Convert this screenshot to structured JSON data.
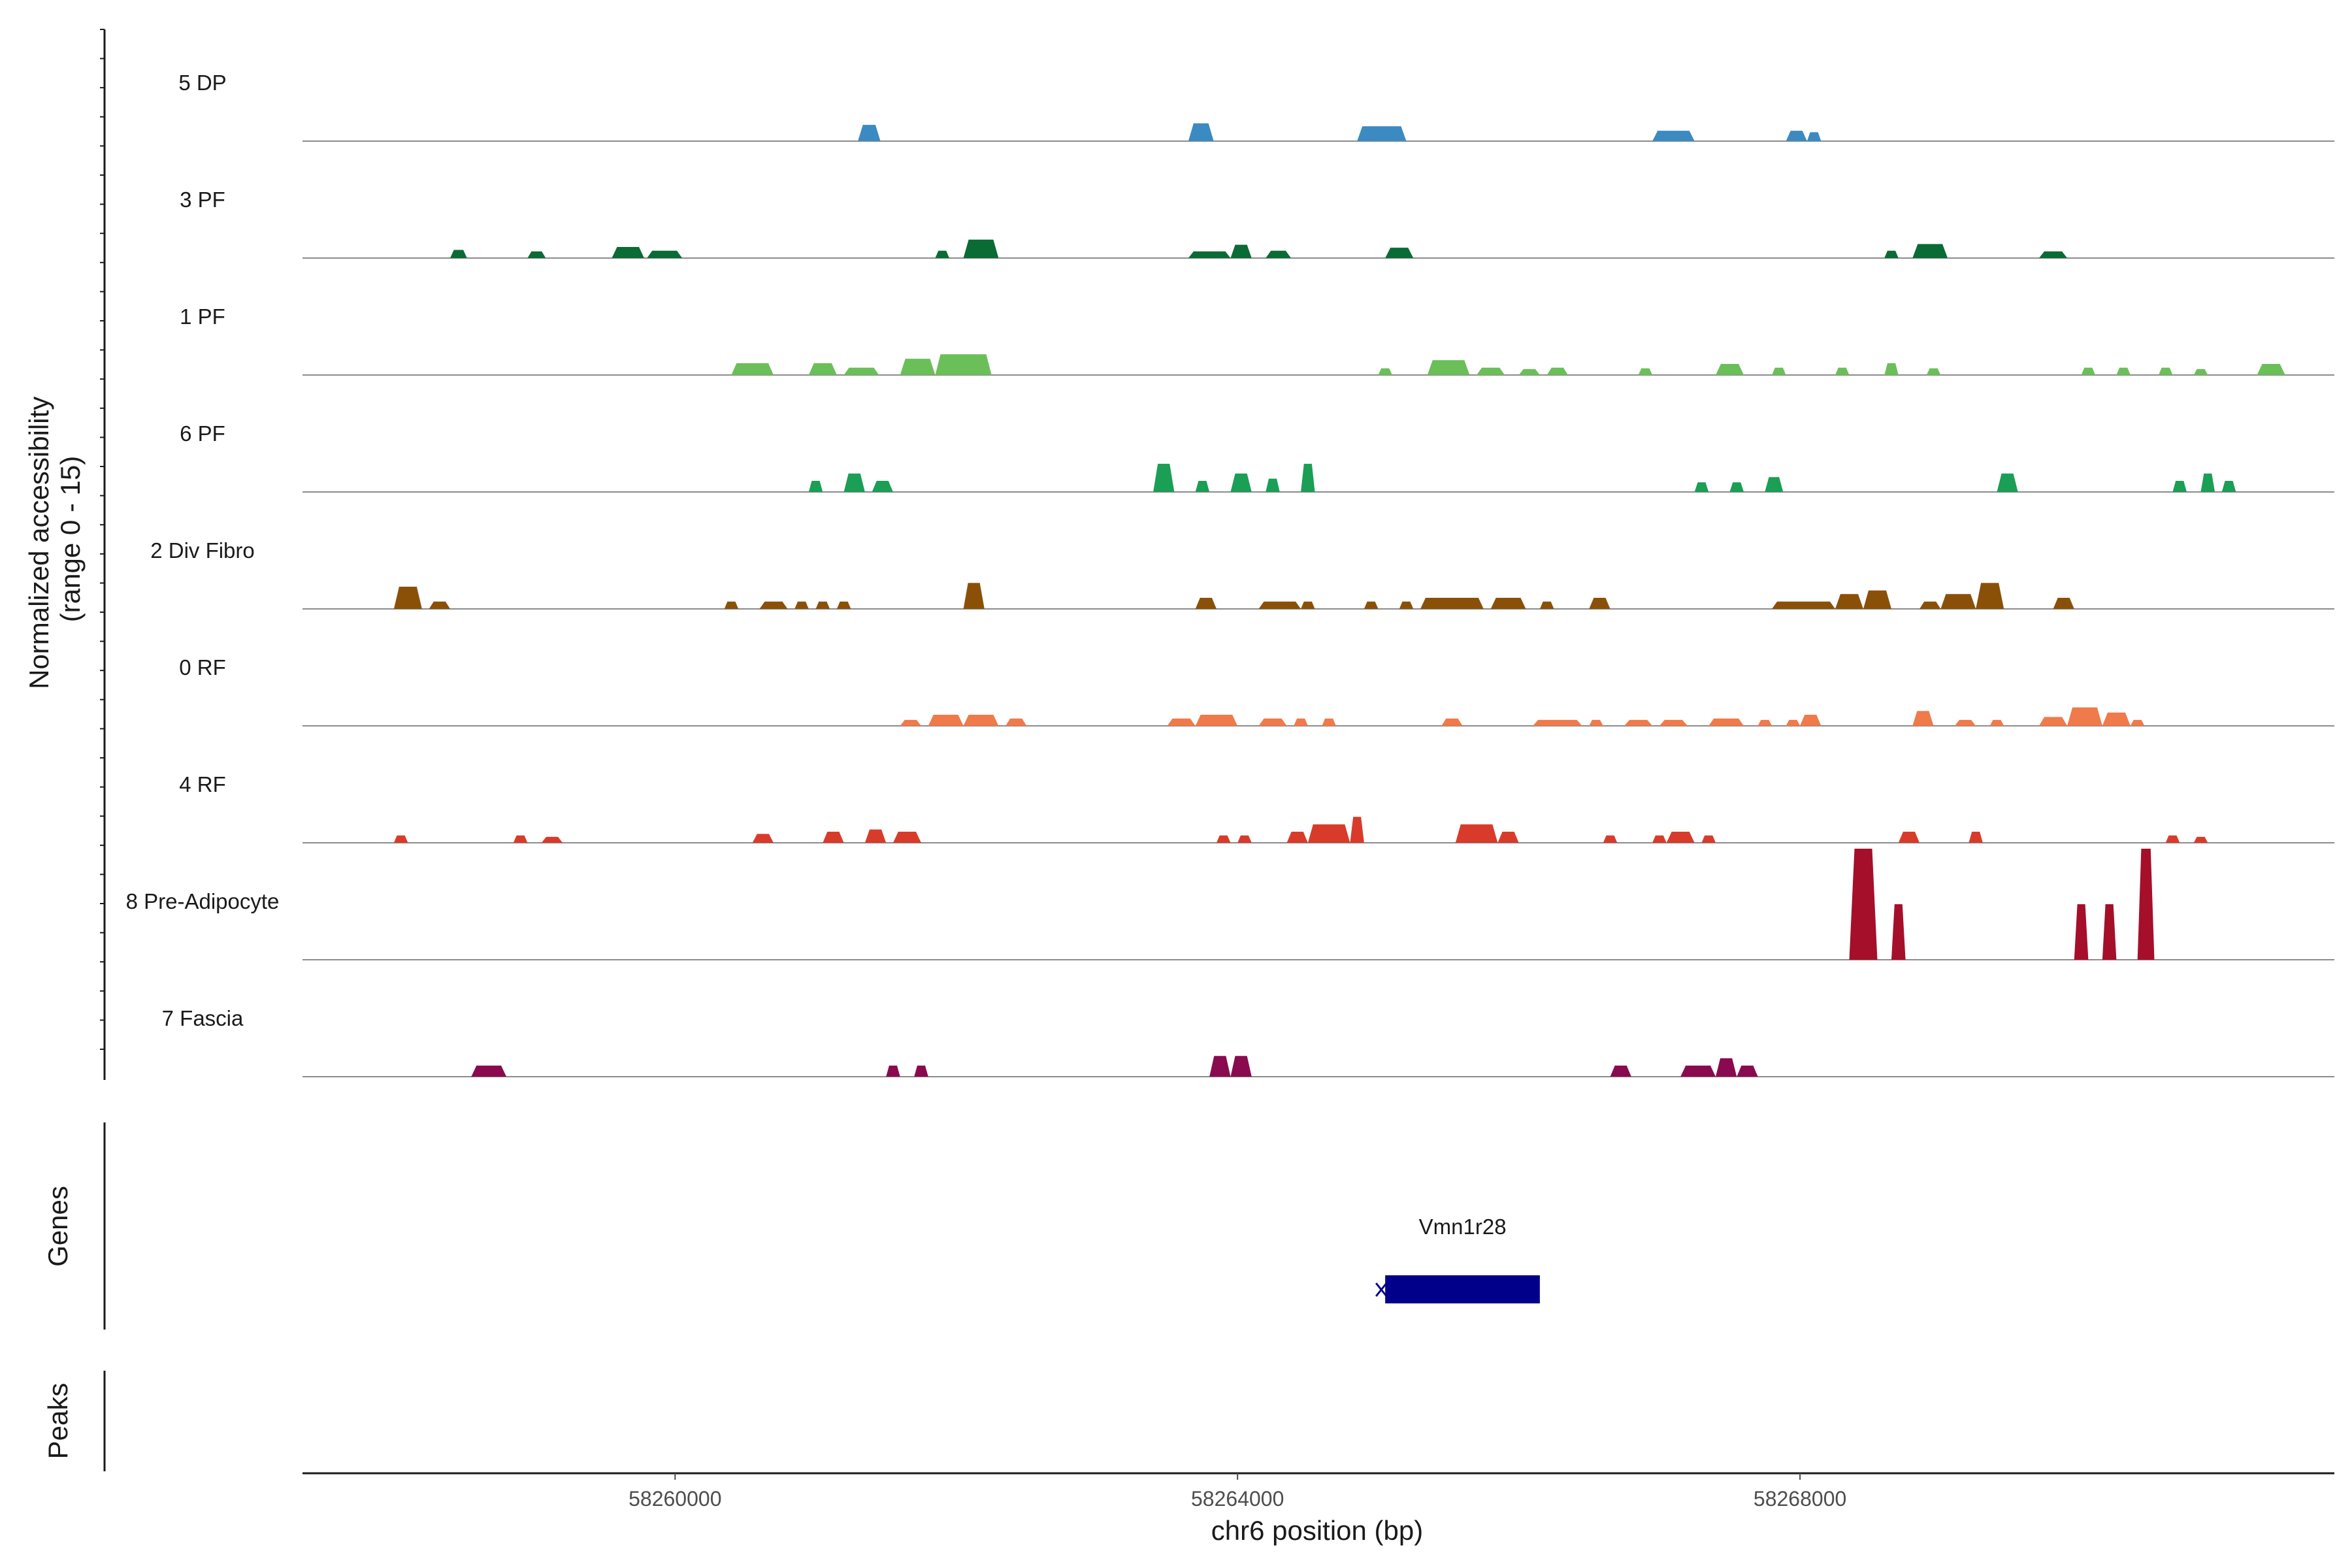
{
  "chart_data": {
    "type": "coverage-track",
    "chromosome": "chr6",
    "xlim": [
      58257350,
      58271800
    ],
    "xlabel": "chr6 position (bp)",
    "ylabel": "Normalized accessibility\n(range 0 - 15)",
    "ylim": [
      0,
      15
    ],
    "xticks": [
      {
        "value": 58260000,
        "label": "58260000"
      },
      {
        "value": 58264000,
        "label": "58264000"
      },
      {
        "value": 58268000,
        "label": "58268000"
      }
    ],
    "tracks": [
      {
        "name": "5 DP",
        "color": "#3B8BC2",
        "peaks": [
          [
            58261300,
            58261460,
            2.2
          ],
          [
            58263650,
            58263830,
            2.4
          ],
          [
            58264850,
            58265200,
            2.0
          ],
          [
            58266950,
            58267250,
            1.4
          ],
          [
            58267900,
            58268050,
            1.4
          ],
          [
            58268050,
            58268150,
            1.2
          ]
        ]
      },
      {
        "name": "3 PF",
        "color": "#0B6B35",
        "peaks": [
          [
            58258400,
            58258520,
            1.1
          ],
          [
            58258950,
            58259080,
            0.9
          ],
          [
            58259550,
            58259780,
            1.5
          ],
          [
            58259800,
            58260050,
            1.0
          ],
          [
            58261850,
            58261950,
            1.0
          ],
          [
            58262050,
            58262300,
            2.5
          ],
          [
            58263650,
            58263950,
            0.9
          ],
          [
            58263950,
            58264100,
            1.8
          ],
          [
            58264200,
            58264380,
            1.0
          ],
          [
            58265050,
            58265250,
            1.4
          ],
          [
            58268600,
            58268700,
            1.0
          ],
          [
            58268800,
            58269050,
            1.9
          ],
          [
            58269700,
            58269900,
            0.9
          ]
        ]
      },
      {
        "name": "1 PF",
        "color": "#6BBF59",
        "peaks": [
          [
            58260400,
            58260700,
            1.6
          ],
          [
            58260950,
            58261150,
            1.6
          ],
          [
            58261200,
            58261450,
            1.0
          ],
          [
            58261600,
            58261850,
            2.2
          ],
          [
            58261850,
            58262250,
            2.8
          ],
          [
            58265000,
            58265100,
            0.9
          ],
          [
            58265350,
            58265650,
            2.0
          ],
          [
            58265700,
            58265900,
            1.0
          ],
          [
            58266000,
            58266150,
            0.8
          ],
          [
            58266200,
            58266350,
            1.0
          ],
          [
            58266850,
            58266950,
            0.9
          ],
          [
            58267400,
            58267600,
            1.5
          ],
          [
            58267800,
            58267900,
            1.0
          ],
          [
            58268250,
            58268350,
            1.0
          ],
          [
            58268600,
            58268700,
            1.6
          ],
          [
            58268900,
            58269000,
            0.9
          ],
          [
            58270000,
            58270100,
            1.0
          ],
          [
            58270250,
            58270350,
            1.0
          ],
          [
            58270550,
            58270650,
            1.0
          ],
          [
            58270800,
            58270900,
            0.8
          ],
          [
            58271250,
            58271450,
            1.5
          ]
        ]
      },
      {
        "name": "6 PF",
        "color": "#1B9E55",
        "peaks": [
          [
            58260950,
            58261050,
            1.5
          ],
          [
            58261200,
            58261350,
            2.5
          ],
          [
            58261400,
            58261550,
            1.5
          ],
          [
            58263400,
            58263550,
            3.8
          ],
          [
            58263700,
            58263800,
            1.5
          ],
          [
            58263950,
            58264100,
            2.5
          ],
          [
            58264200,
            58264300,
            1.8
          ],
          [
            58264450,
            58264550,
            3.8
          ],
          [
            58267250,
            58267350,
            1.3
          ],
          [
            58267500,
            58267600,
            1.3
          ],
          [
            58267750,
            58267880,
            2.0
          ],
          [
            58269400,
            58269550,
            2.5
          ],
          [
            58270650,
            58270750,
            1.5
          ],
          [
            58270850,
            58270950,
            2.5
          ],
          [
            58271000,
            58271100,
            1.5
          ]
        ]
      },
      {
        "name": "2 Div Fibro",
        "color": "#8B5008",
        "peaks": [
          [
            58258000,
            58258200,
            3.0
          ],
          [
            58258250,
            58258400,
            1.0
          ],
          [
            58260350,
            58260450,
            1.0
          ],
          [
            58260600,
            58260800,
            1.0
          ],
          [
            58260850,
            58260950,
            1.0
          ],
          [
            58261000,
            58261100,
            1.0
          ],
          [
            58261150,
            58261250,
            1.0
          ],
          [
            58262050,
            58262200,
            3.5
          ],
          [
            58263700,
            58263850,
            1.5
          ],
          [
            58264150,
            58264450,
            1.0
          ],
          [
            58264450,
            58264550,
            1.0
          ],
          [
            58264900,
            58265000,
            1.0
          ],
          [
            58265150,
            58265250,
            1.0
          ],
          [
            58265300,
            58265750,
            1.5
          ],
          [
            58265800,
            58266050,
            1.5
          ],
          [
            58266150,
            58266250,
            1.0
          ],
          [
            58266500,
            58266650,
            1.5
          ],
          [
            58267800,
            58268250,
            1.0
          ],
          [
            58268250,
            58268450,
            2.0
          ],
          [
            58268450,
            58268650,
            2.5
          ],
          [
            58268850,
            58269000,
            1.0
          ],
          [
            58269000,
            58269250,
            2.0
          ],
          [
            58269250,
            58269450,
            3.5
          ],
          [
            58269800,
            58269950,
            1.5
          ]
        ]
      },
      {
        "name": "0 RF",
        "color": "#F07A4A",
        "peaks": [
          [
            58261600,
            58261750,
            0.8
          ],
          [
            58261800,
            58262050,
            1.5
          ],
          [
            58262050,
            58262300,
            1.5
          ],
          [
            58262350,
            58262500,
            1.0
          ],
          [
            58263500,
            58263700,
            1.0
          ],
          [
            58263700,
            58264000,
            1.5
          ],
          [
            58264150,
            58264350,
            1.0
          ],
          [
            58264400,
            58264500,
            1.0
          ],
          [
            58264600,
            58264700,
            1.0
          ],
          [
            58265450,
            58265600,
            1.0
          ],
          [
            58266100,
            58266450,
            0.8
          ],
          [
            58266500,
            58266600,
            0.8
          ],
          [
            58266750,
            58266950,
            0.8
          ],
          [
            58267000,
            58267200,
            0.8
          ],
          [
            58267350,
            58267600,
            1.0
          ],
          [
            58267700,
            58267800,
            0.8
          ],
          [
            58267900,
            58268000,
            0.8
          ],
          [
            58268000,
            58268150,
            1.5
          ],
          [
            58268800,
            58268950,
            2.0
          ],
          [
            58269100,
            58269250,
            0.8
          ],
          [
            58269350,
            58269450,
            0.8
          ],
          [
            58269700,
            58269900,
            1.2
          ],
          [
            58269900,
            58270150,
            2.5
          ],
          [
            58270150,
            58270350,
            1.8
          ],
          [
            58270350,
            58270450,
            0.8
          ]
        ]
      },
      {
        "name": "4 RF",
        "color": "#D93B2B",
        "peaks": [
          [
            58258000,
            58258100,
            1.0
          ],
          [
            58258850,
            58258950,
            1.0
          ],
          [
            58259050,
            58259200,
            0.8
          ],
          [
            58260550,
            58260700,
            1.2
          ],
          [
            58261050,
            58261200,
            1.5
          ],
          [
            58261350,
            58261500,
            1.8
          ],
          [
            58261550,
            58261750,
            1.5
          ],
          [
            58263850,
            58263950,
            1.0
          ],
          [
            58264000,
            58264100,
            1.0
          ],
          [
            58264350,
            58264500,
            1.5
          ],
          [
            58264500,
            58264800,
            2.5
          ],
          [
            58264800,
            58264900,
            3.5
          ],
          [
            58265550,
            58265850,
            2.5
          ],
          [
            58265850,
            58266000,
            1.5
          ],
          [
            58266600,
            58266700,
            1.0
          ],
          [
            58266950,
            58267050,
            1.0
          ],
          [
            58267050,
            58267250,
            1.5
          ],
          [
            58267300,
            58267400,
            1.0
          ],
          [
            58268700,
            58268850,
            1.5
          ],
          [
            58269200,
            58269300,
            1.5
          ],
          [
            58270600,
            58270700,
            1.0
          ],
          [
            58270800,
            58270900,
            0.8
          ]
        ]
      },
      {
        "name": "8 Pre-Adipocyte",
        "color": "#A50F2A",
        "peaks": [
          [
            58268350,
            58268550,
            15.0
          ],
          [
            58268650,
            58268750,
            7.5
          ],
          [
            58269950,
            58270050,
            7.5
          ],
          [
            58270150,
            58270250,
            7.5
          ],
          [
            58270400,
            58270520,
            15.0
          ]
        ]
      },
      {
        "name": "7 Fascia",
        "color": "#8A0A4F",
        "peaks": [
          [
            58258550,
            58258800,
            1.5
          ],
          [
            58261500,
            58261600,
            1.5
          ],
          [
            58261700,
            58261800,
            1.5
          ],
          [
            58263800,
            58263950,
            2.8
          ],
          [
            58263950,
            58264100,
            2.8
          ],
          [
            58266650,
            58266800,
            1.5
          ],
          [
            58267150,
            58267400,
            1.5
          ],
          [
            58267400,
            58267550,
            2.5
          ],
          [
            58267550,
            58267700,
            1.5
          ]
        ]
      }
    ],
    "gene_track": {
      "title": "Genes",
      "genes": [
        {
          "name": "Vmn1r28",
          "start": 58265050,
          "end": 58266150,
          "strand": "-",
          "color": "#00008B"
        }
      ]
    },
    "peak_track": {
      "title": "Peaks",
      "peaks": []
    }
  }
}
